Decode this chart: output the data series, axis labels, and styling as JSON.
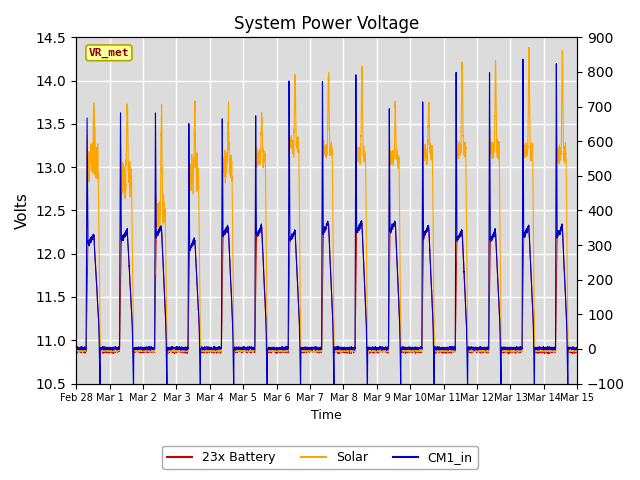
{
  "title": "System Power Voltage",
  "xlabel": "Time",
  "ylabel": "Volts",
  "ylim_left": [
    10.5,
    14.5
  ],
  "ylim_right": [
    -100,
    900
  ],
  "yticks_left": [
    10.5,
    11.0,
    11.5,
    12.0,
    12.5,
    13.0,
    13.5,
    14.0,
    14.5
  ],
  "yticks_right": [
    -100,
    0,
    100,
    200,
    300,
    400,
    500,
    600,
    700,
    800,
    900
  ],
  "bg_color": "#dcdcdc",
  "fig_color": "#ffffff",
  "grid_color": "#ffffff",
  "annotation_text": "VR_met",
  "annotation_color": "#8b0000",
  "annotation_bg": "#ffff99",
  "annotation_border": "#aaaa00",
  "line_battery": "#cc0000",
  "line_solar": "#ffa500",
  "line_cm1": "#0000cc",
  "legend_labels": [
    "23x Battery",
    "Solar",
    "CM1_in"
  ],
  "date_labels": [
    "Feb 28",
    "Mar 1",
    "Mar 2",
    "Mar 3",
    "Mar 4",
    "Mar 5",
    "Mar 6",
    "Mar 7",
    "Mar 8",
    "Mar 9",
    "Mar 10",
    "Mar 11",
    "Mar 12",
    "Mar 13",
    "Mar 14",
    "Mar 15"
  ],
  "n_days": 15
}
